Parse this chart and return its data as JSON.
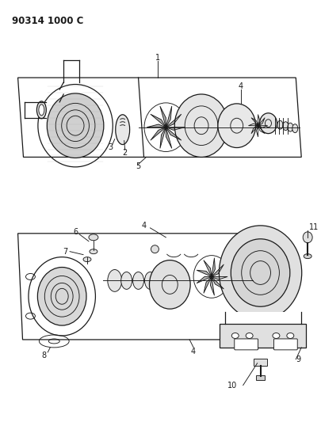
{
  "title": "90314 1000 C",
  "background_color": "#ffffff",
  "line_color": "#1a1a1a",
  "fig_width": 4.05,
  "fig_height": 5.33,
  "dpi": 100
}
